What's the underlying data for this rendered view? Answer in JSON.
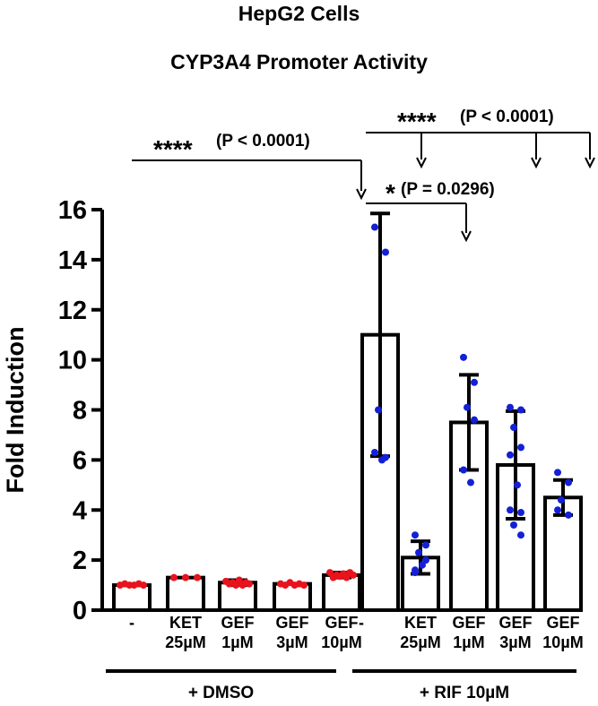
{
  "chart_data": {
    "type": "bar",
    "title": "HepG2 Cells",
    "subtitle": "CYP3A4 Promoter Activity",
    "ylabel": "Fold Induction",
    "ylim": [
      0,
      16
    ],
    "yticks": [
      0,
      2,
      4,
      6,
      8,
      10,
      12,
      14,
      16
    ],
    "categories": [
      [
        "-"
      ],
      [
        "KET",
        "25µM"
      ],
      [
        "GEF",
        "1µM"
      ],
      [
        "GEF",
        "3µM"
      ],
      [
        "GEF",
        "10µM"
      ],
      [
        "-"
      ],
      [
        "KET",
        "25µM"
      ],
      [
        "GEF",
        "1µM"
      ],
      [
        "GEF",
        "3µM"
      ],
      [
        "GEF",
        "10µM"
      ]
    ],
    "groups": [
      {
        "label": "+ DMSO",
        "indices": [
          0,
          1,
          2,
          3,
          4
        ]
      },
      {
        "label": "+ RIF 10µM",
        "indices": [
          5,
          6,
          7,
          8,
          9
        ]
      }
    ],
    "values": [
      1.0,
      1.3,
      1.1,
      1.05,
      1.4,
      11.0,
      2.1,
      7.5,
      5.8,
      4.5
    ],
    "errors": [
      0.05,
      0.05,
      0.1,
      0.05,
      0.1,
      4.85,
      0.65,
      1.9,
      2.15,
      0.7
    ],
    "points": [
      [
        1.0,
        1.05,
        1.0,
        1.0,
        1.05,
        1.0
      ],
      [
        1.3,
        1.3,
        1.3
      ],
      [
        1.15,
        1.05,
        1.1,
        1.0,
        1.2,
        1.0,
        1.1,
        1.05
      ],
      [
        1.05,
        1.0,
        1.1,
        1.0,
        1.05,
        1.0
      ],
      [
        1.5,
        1.3,
        1.4,
        1.35,
        1.45,
        1.3,
        1.5,
        1.4
      ],
      [
        15.3,
        14.3,
        8.0,
        6.1,
        6.3,
        6.0
      ],
      [
        3.0,
        2.6,
        2.3,
        2.0,
        1.6,
        1.8,
        1.5
      ],
      [
        10.1,
        9.1,
        8.1,
        7.6,
        5.6,
        5.1
      ],
      [
        8.1,
        8.0,
        7.3,
        6.5,
        6.2,
        5.0,
        4.0,
        3.9,
        3.4,
        3.0
      ],
      [
        5.5,
        5.1,
        4.4,
        3.8,
        4.0
      ]
    ],
    "point_colors": [
      "#e8131c",
      "#e8131c",
      "#e8131c",
      "#e8131c",
      "#e8131c",
      "#1420d6",
      "#1420d6",
      "#1420d6",
      "#1420d6",
      "#1420d6"
    ],
    "bar_fill": "#ffffff",
    "bar_stroke": "#000000",
    "annotations": [
      {
        "stars": "****",
        "text": "(P < 0.0001)",
        "from": 0,
        "to": [
          5
        ]
      },
      {
        "stars": "****",
        "text": "(P < 0.0001)",
        "from": 5,
        "to": [
          6,
          8,
          9
        ]
      },
      {
        "stars": "*",
        "text": "(P = 0.0296)",
        "from": 5,
        "to": [
          7
        ]
      }
    ]
  }
}
